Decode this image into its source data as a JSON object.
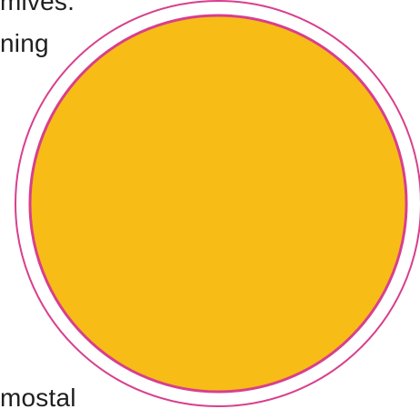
{
  "text_fragments": {
    "top_line_1": "mives.",
    "top_line_2": "ning",
    "bottom_line": "mostal"
  },
  "colors": {
    "background": "#ffffff",
    "circle_fill": "#f7bc16",
    "circle_stroke": "#d83f8d",
    "text": "#1f1f1f"
  }
}
